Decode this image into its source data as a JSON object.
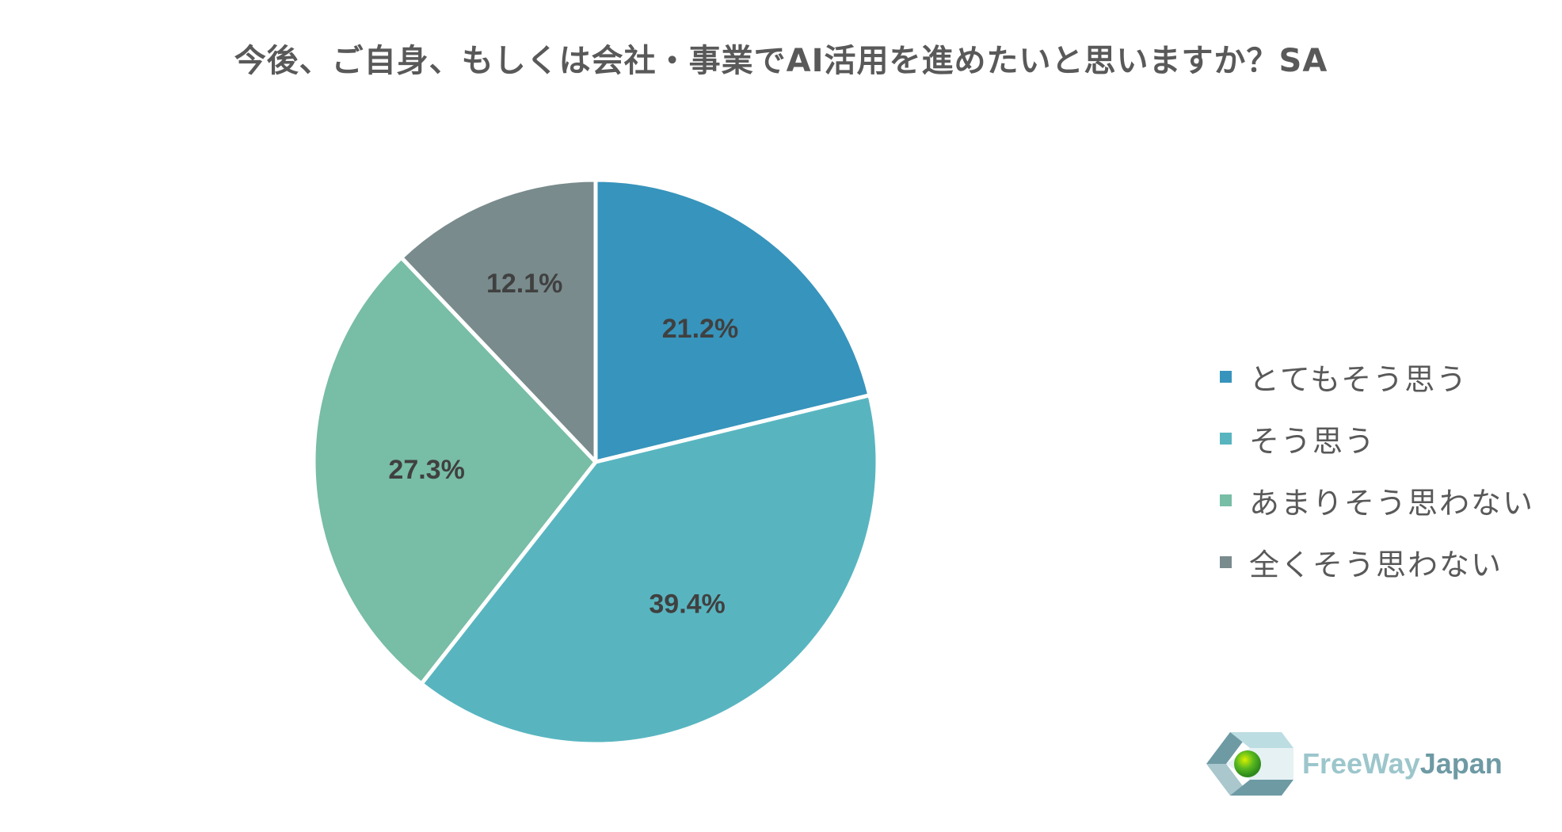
{
  "title": "今後、ご自身、もしくは会社・事業でAI活用を進めたいと思いますか？SA",
  "chart_data": {
    "type": "pie",
    "title": "今後、ご自身、もしくは会社・事業でAI活用を進めたいと思いますか？SA",
    "start": "12 o'clock",
    "direction": "clockwise",
    "slices": [
      {
        "label": "とてもそう思う",
        "value": 21.2,
        "display": "21.2%",
        "color": "#3794bc"
      },
      {
        "label": "そう思う",
        "value": 39.4,
        "display": "39.4%",
        "color": "#58b5c0"
      },
      {
        "label": "あまりそう思わない",
        "value": 27.3,
        "display": "27.3%",
        "color": "#78bda6"
      },
      {
        "label": "全くそう思わない",
        "value": 12.1,
        "display": "12.1%",
        "color": "#798b8c"
      }
    ],
    "legend_placement": "right",
    "label_color": "#404040"
  },
  "legend": {
    "items": [
      {
        "label": "とてもそう思う",
        "color": "#3794bc"
      },
      {
        "label": "そう思う",
        "color": "#58b5c0"
      },
      {
        "label": "あまりそう思わない",
        "color": "#78bda6"
      },
      {
        "label": "全くそう思わない",
        "color": "#798b8c"
      }
    ]
  },
  "logo": {
    "text_part1": "FreeWay",
    "text_part2": "Japan",
    "color_part1": "#9cc6cc",
    "color_part2": "#6e9aa4"
  }
}
